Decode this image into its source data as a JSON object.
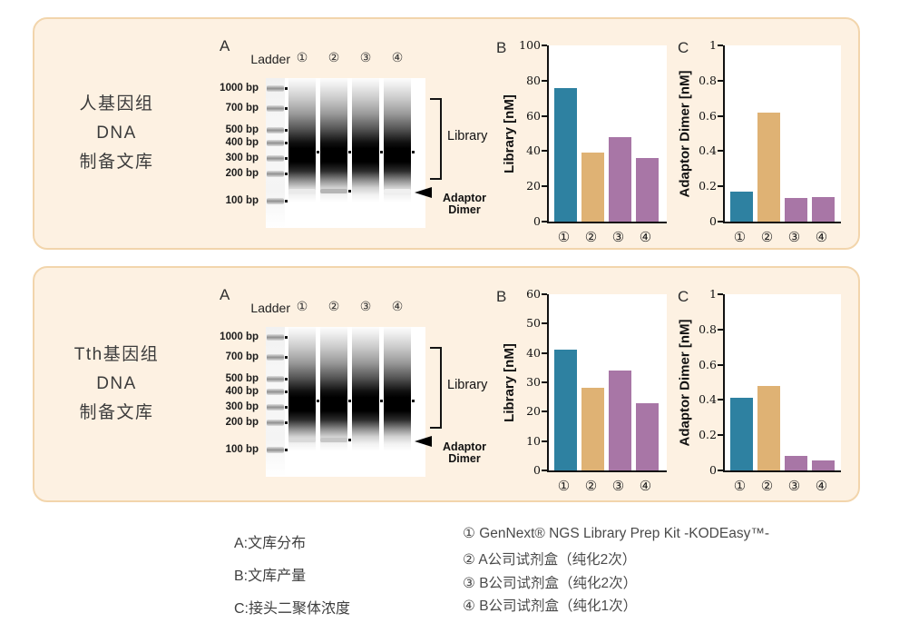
{
  "colors": {
    "teal": "#2e81a1",
    "tan": "#dfb274",
    "purple": "#a876a6",
    "panel_background": "#fdf1e2",
    "panel_border": "#f2d5ac"
  },
  "panels": [
    {
      "sample_label_lines": [
        "人基因组",
        "DNA",
        "制备文库"
      ],
      "gel": {
        "section_letter": "A",
        "ladder_label": "Ladder",
        "lane_labels": [
          "①",
          "②",
          "③",
          "④"
        ],
        "bp_labels": [
          "1000 bp",
          "700 bp",
          "500 bp",
          "400 bp",
          "300 bp",
          "200 bp",
          "100 bp"
        ],
        "bracket_label": "Library",
        "arrow_label_line1": "Adaptor",
        "arrow_label_line2": "Dimer"
      }
    },
    {
      "sample_label_lines": [
        "Tth基因组",
        "DNA",
        "制备文库"
      ],
      "gel": {
        "section_letter": "A",
        "ladder_label": "Ladder",
        "lane_labels": [
          "①",
          "②",
          "③",
          "④"
        ],
        "bp_labels": [
          "1000 bp",
          "700 bp",
          "500 bp",
          "400 bp",
          "300 bp",
          "200 bp",
          "100 bp"
        ],
        "bracket_label": "Library",
        "arrow_label_line1": "Adaptor",
        "arrow_label_line2": "Dimer"
      }
    }
  ],
  "chart_data": [
    {
      "type": "bar",
      "panel": "人基因组 DNA 制备文库",
      "section_letter": "B",
      "ylabel": "Library [nM]",
      "categories": [
        "①",
        "②",
        "③",
        "④"
      ],
      "values": [
        76,
        39,
        48,
        36
      ],
      "ylim": [
        0,
        100
      ],
      "yticks": [
        0,
        20,
        40,
        60,
        80,
        100
      ],
      "bar_colors": [
        "#2e81a1",
        "#dfb274",
        "#a876a6",
        "#a876a6"
      ],
      "grid": false,
      "legend": "none"
    },
    {
      "type": "bar",
      "panel": "人基因组 DNA 制备文库",
      "section_letter": "C",
      "ylabel": "Adaptor Dimer [nM]",
      "categories": [
        "①",
        "②",
        "③",
        "④"
      ],
      "values": [
        0.17,
        0.62,
        0.135,
        0.14
      ],
      "ylim": [
        0,
        1
      ],
      "yticks": [
        0,
        0.2,
        0.4,
        0.6,
        0.8,
        1
      ],
      "bar_colors": [
        "#2e81a1",
        "#dfb274",
        "#a876a6",
        "#a876a6"
      ],
      "grid": false,
      "legend": "none"
    },
    {
      "type": "bar",
      "panel": "Tth基因组 DNA 制备文库",
      "section_letter": "B",
      "ylabel": "Library [nM]",
      "categories": [
        "①",
        "②",
        "③",
        "④"
      ],
      "values": [
        41,
        28,
        34,
        23
      ],
      "ylim": [
        0,
        60
      ],
      "yticks": [
        0,
        10,
        20,
        30,
        40,
        50,
        60
      ],
      "bar_colors": [
        "#2e81a1",
        "#dfb274",
        "#a876a6",
        "#a876a6"
      ],
      "grid": false,
      "legend": "none"
    },
    {
      "type": "bar",
      "panel": "Tth基因组 DNA 制备文库",
      "section_letter": "C",
      "ylabel": "Adaptor Dimer [nM]",
      "categories": [
        "①",
        "②",
        "③",
        "④"
      ],
      "values": [
        0.41,
        0.48,
        0.085,
        0.055
      ],
      "ylim": [
        0,
        1
      ],
      "yticks": [
        0,
        0.2,
        0.4,
        0.6,
        0.8,
        1
      ],
      "bar_colors": [
        "#2e81a1",
        "#dfb274",
        "#a876a6",
        "#a876a6"
      ],
      "grid": false,
      "legend": "none"
    }
  ],
  "legend": {
    "left_items": [
      "A:文库分布",
      "B:文库产量",
      "C:接头二聚体浓度"
    ],
    "right_items": [
      "① GenNext® NGS Library Prep Kit -KODEasy™-",
      "② A公司试剂盒（纯化2次）",
      "③ B公司试剂盒（纯化2次）",
      "④ B公司试剂盒（纯化1次）"
    ]
  }
}
